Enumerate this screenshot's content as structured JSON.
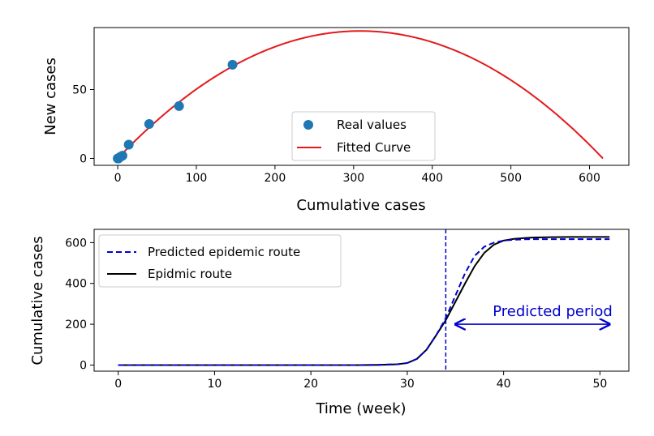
{
  "chart_data": [
    {
      "type": "scatter",
      "xlabel": "Cumulative cases",
      "ylabel": "New cases",
      "xlim": [
        -30,
        650
      ],
      "ylim": [
        -5,
        95
      ],
      "xticks": [
        "0",
        "100",
        "200",
        "300",
        "400",
        "500",
        "600"
      ],
      "yticks": [
        "0",
        "50"
      ],
      "legend": {
        "position": "center-bottom",
        "entries": [
          "Real values",
          "Fitted Curve"
        ]
      },
      "series": [
        {
          "name": "Real values",
          "kind": "scatter",
          "color": "#1f77b4",
          "points": [
            [
              0,
              0
            ],
            [
              1,
              0
            ],
            [
              3,
              1
            ],
            [
              6,
              2
            ],
            [
              14,
              10
            ],
            [
              40,
              25
            ],
            [
              78,
              38
            ],
            [
              146,
              68
            ]
          ]
        },
        {
          "name": "Fitted Curve",
          "kind": "line",
          "color": "#e31a1c",
          "equation": "y = 2*0.5998*x*(1 - x/617)",
          "x_range": [
            0,
            617
          ],
          "peak": [
            308.5,
            92.5
          ]
        }
      ]
    },
    {
      "type": "line",
      "xlabel": "Time (week)",
      "ylabel": "Cumulative cases",
      "xlim": [
        -2.5,
        53
      ],
      "ylim": [
        -30,
        665
      ],
      "xticks": [
        "0",
        "10",
        "20",
        "30",
        "40",
        "50"
      ],
      "yticks": [
        "0",
        "200",
        "400",
        "600"
      ],
      "legend": {
        "position": "top-left",
        "entries": [
          "Predicted epidemic route",
          "Epidmic route"
        ]
      },
      "vline_x": 34,
      "annotation": {
        "text": "Predicted period",
        "x_start": 35,
        "x_end": 51,
        "y": 200,
        "color": "#0000cc"
      },
      "series": [
        {
          "name": "Predicted epidemic route",
          "style": "dashed",
          "color": "#0000cc",
          "x": [
            0,
            5,
            10,
            15,
            20,
            25,
            27,
            29,
            30,
            31,
            32,
            33,
            34,
            35,
            36,
            37,
            38,
            39,
            40,
            41,
            42,
            43,
            45,
            47,
            49,
            51
          ],
          "y": [
            0,
            0,
            0,
            0,
            0,
            0,
            1,
            4,
            10,
            30,
            75,
            146,
            230,
            340,
            450,
            535,
            580,
            600,
            610,
            614,
            616,
            617,
            617,
            617,
            617,
            617
          ]
        },
        {
          "name": "Epidmic route",
          "style": "solid",
          "color": "#000000",
          "x": [
            0,
            5,
            10,
            15,
            20,
            25,
            27,
            29,
            30,
            31,
            32,
            33,
            34,
            35,
            36,
            37,
            38,
            39,
            40,
            41,
            42,
            43,
            45,
            47,
            49,
            51
          ],
          "y": [
            0,
            0,
            0,
            0,
            0,
            0,
            1,
            4,
            10,
            30,
            75,
            146,
            220,
            310,
            400,
            485,
            550,
            590,
            610,
            618,
            622,
            625,
            627,
            628,
            628,
            628
          ]
        }
      ]
    }
  ]
}
